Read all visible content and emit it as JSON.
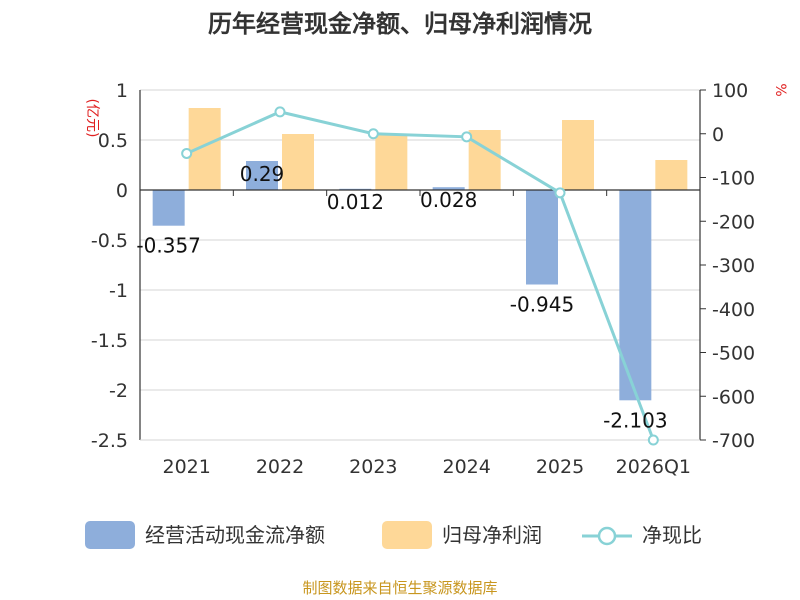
{
  "chart_data": {
    "type": "bar+line",
    "title": "历年经营现金净额、归母净利润情况",
    "categories": [
      "2021",
      "2022",
      "2023",
      "2024",
      "2025",
      "2026Q1"
    ],
    "left_axis": {
      "unit": "(亿元)",
      "range": [
        -2.5,
        1
      ],
      "ticks": [
        "1",
        "0.5",
        "0",
        "-0.5",
        "-1",
        "-1.5",
        "-2",
        "-2.5"
      ],
      "tick_values": [
        1,
        0.5,
        0,
        -0.5,
        -1,
        -1.5,
        -2,
        -2.5
      ]
    },
    "right_axis": {
      "unit": "%",
      "range": [
        -700,
        100
      ],
      "ticks": [
        "100",
        "0",
        "-100",
        "-200",
        "-300",
        "-400",
        "-500",
        "-600",
        "-700"
      ],
      "tick_values": [
        100,
        0,
        -100,
        -200,
        -300,
        -400,
        -500,
        -600,
        -700
      ]
    },
    "series": [
      {
        "name": "经营活动现金流净额",
        "type": "bar",
        "axis": "left",
        "color": "#8eaedb",
        "values": [
          -0.357,
          0.29,
          0.012,
          0.028,
          -0.945,
          -2.103
        ],
        "labels": [
          "-0.357",
          "0.29",
          "0.012",
          "0.028",
          "-0.945",
          "-2.103"
        ]
      },
      {
        "name": "归母净利润",
        "type": "bar",
        "axis": "left",
        "color": "#fed898",
        "values": [
          0.82,
          0.56,
          0.55,
          0.6,
          0.7,
          0.3
        ]
      },
      {
        "name": "净现比",
        "type": "line",
        "axis": "right",
        "color": "#88d2d6",
        "values": [
          -45,
          50,
          0,
          -7,
          -135,
          -700
        ]
      }
    ],
    "legend_position": "bottom",
    "grid": true
  },
  "footer": {
    "source": "制图数据来自恒生聚源数据库"
  }
}
